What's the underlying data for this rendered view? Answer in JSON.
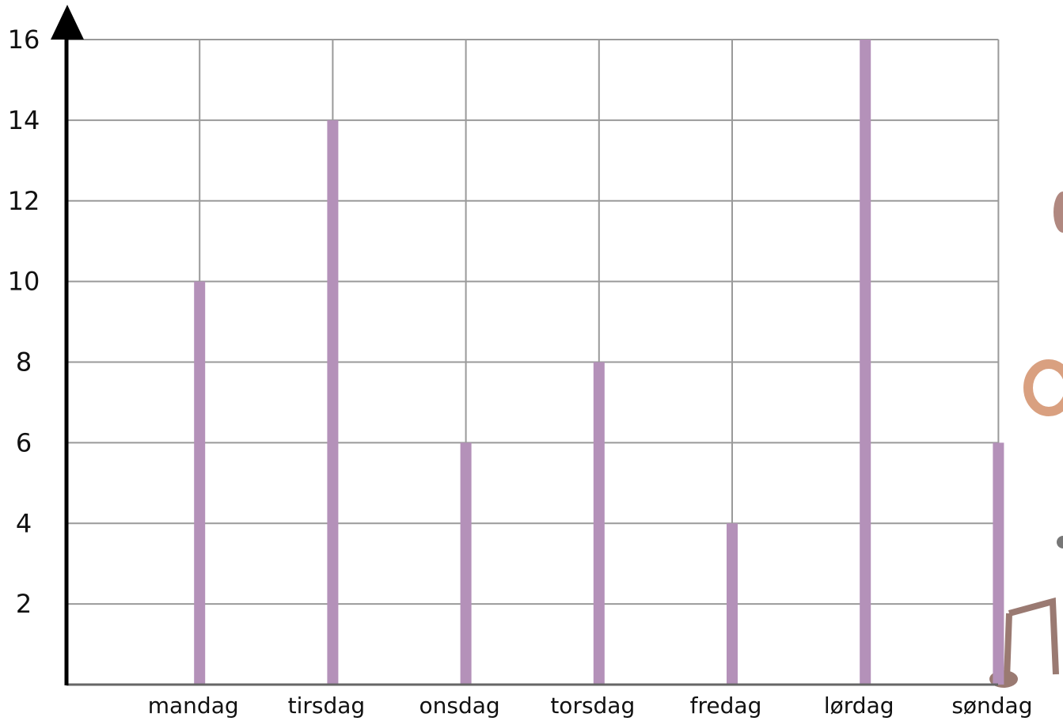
{
  "chart_data": {
    "type": "bar",
    "categories": [
      "mandag",
      "tirsdag",
      "onsdag",
      "torsdag",
      "fredag",
      "lørdag",
      "søndag"
    ],
    "values": [
      10,
      14,
      6,
      8,
      4,
      16,
      6
    ],
    "color": "#b491b9",
    "ylim": [
      0,
      16
    ],
    "yticks": [
      2,
      4,
      6,
      8,
      10,
      12,
      14,
      16
    ],
    "grid": true
  }
}
